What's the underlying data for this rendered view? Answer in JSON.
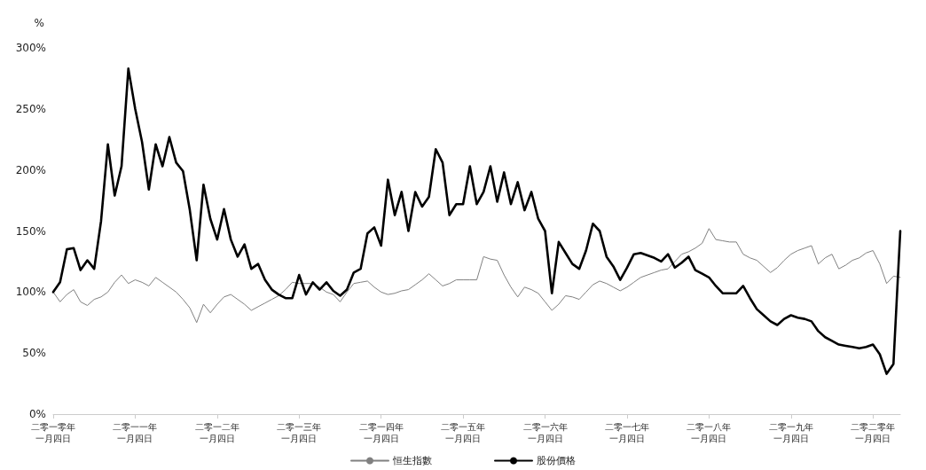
{
  "chart_data": {
    "type": "line",
    "ylabel": "%",
    "marker": "none",
    "legend": "bottom",
    "categories": [
      "二零一零年一月四日",
      null,
      null,
      null,
      null,
      null,
      null,
      null,
      null,
      null,
      null,
      null,
      "二零一一年一月四日",
      null,
      null,
      null,
      null,
      null,
      null,
      null,
      null,
      null,
      null,
      null,
      "二零一二年一月四日",
      null,
      null,
      null,
      null,
      null,
      null,
      null,
      null,
      null,
      null,
      null,
      "二零一三年一月四日",
      null,
      null,
      null,
      null,
      null,
      null,
      null,
      null,
      null,
      null,
      null,
      "二零一四年一月四日",
      null,
      null,
      null,
      null,
      null,
      null,
      null,
      null,
      null,
      null,
      null,
      "二零一五年一月四日",
      null,
      null,
      null,
      null,
      null,
      null,
      null,
      null,
      null,
      null,
      null,
      "二零一六年一月四日",
      null,
      null,
      null,
      null,
      null,
      null,
      null,
      null,
      null,
      null,
      null,
      "二零一七年一月四日",
      null,
      null,
      null,
      null,
      null,
      null,
      null,
      null,
      null,
      null,
      null,
      "二零一八年一月四日",
      null,
      null,
      null,
      null,
      null,
      null,
      null,
      null,
      null,
      null,
      null,
      "二零一九年一月四日",
      null,
      null,
      null,
      null,
      null,
      null,
      null,
      null,
      null,
      null,
      null,
      "二零二零年一月四日",
      null,
      null,
      null,
      null
    ],
    "ylim": [
      0,
      300
    ],
    "yticks": [
      {
        "value": 0,
        "label": "0%"
      },
      {
        "value": 50,
        "label": "50%"
      },
      {
        "value": 100,
        "label": "100%"
      },
      {
        "value": 150,
        "label": "150%"
      },
      {
        "value": 200,
        "label": "200%"
      },
      {
        "value": 250,
        "label": "250%"
      },
      {
        "value": 300,
        "label": "300%"
      }
    ],
    "series": [
      {
        "name": "恒生指數",
        "color": "#808080",
        "values": [
          100,
          92,
          98,
          102,
          92,
          89,
          94,
          96,
          100,
          108,
          114,
          107,
          110,
          108,
          105,
          112,
          108,
          104,
          100,
          94,
          87,
          75,
          90,
          83,
          90,
          96,
          98,
          94,
          90,
          85,
          88,
          91,
          94,
          97,
          102,
          108,
          107,
          107,
          107,
          104,
          100,
          98,
          92,
          100,
          107,
          108,
          109,
          104,
          100,
          98,
          99,
          101,
          102,
          106,
          110,
          115,
          110,
          105,
          107,
          110,
          110,
          110,
          110,
          129,
          127,
          126,
          114,
          104,
          96,
          104,
          102,
          99,
          92,
          85,
          90,
          97,
          96,
          94,
          100,
          106,
          109,
          107,
          104,
          101,
          104,
          108,
          112,
          114,
          116,
          118,
          119,
          125,
          131,
          133,
          136,
          140,
          152,
          143,
          142,
          141,
          141,
          131,
          128,
          126,
          121,
          116,
          120,
          126,
          131,
          134,
          136,
          138,
          123,
          128,
          131,
          119,
          122,
          126,
          128,
          132,
          134,
          123,
          107,
          113,
          112
        ]
      },
      {
        "name": "股份價格",
        "color": "#000000",
        "values": [
          100,
          108,
          135,
          136,
          118,
          126,
          119,
          158,
          221,
          179,
          203,
          283,
          250,
          223,
          184,
          221,
          203,
          227,
          206,
          199,
          167,
          126,
          188,
          160,
          143,
          168,
          143,
          129,
          139,
          119,
          123,
          110,
          102,
          98,
          95,
          95,
          114,
          98,
          108,
          102,
          108,
          101,
          97,
          102,
          116,
          119,
          148,
          153,
          138,
          192,
          163,
          182,
          150,
          182,
          170,
          178,
          217,
          206,
          163,
          172,
          172,
          203,
          172,
          182,
          203,
          174,
          198,
          172,
          190,
          167,
          182,
          160,
          150,
          99,
          141,
          132,
          123,
          119,
          134,
          156,
          150,
          129,
          121,
          110,
          120,
          131,
          132,
          130,
          128,
          125,
          131,
          120,
          124,
          129,
          118,
          115,
          112,
          105,
          99,
          99,
          99,
          105,
          95,
          86,
          81,
          76,
          73,
          78,
          81,
          79,
          78,
          76,
          68,
          63,
          60,
          57,
          56,
          55,
          54,
          55,
          57,
          49,
          33,
          41,
          150
        ]
      }
    ]
  }
}
